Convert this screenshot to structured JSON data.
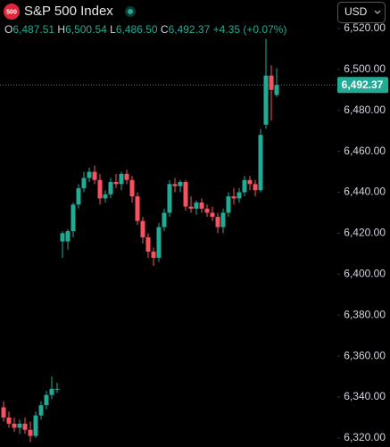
{
  "chart_data": {
    "type": "candlestick",
    "title": "S&P 500 Index",
    "badge": "500",
    "currency": "USD",
    "legend": [
      {
        "key": "O",
        "value": "6,487.51"
      },
      {
        "key": "H",
        "value": "6,500.54"
      },
      {
        "key": "L",
        "value": "6,486.50"
      },
      {
        "key": "C",
        "value": "6,492.37"
      }
    ],
    "change": "+4.35 (+0.07%)",
    "up_color": "#22ab94",
    "down_color": "#f7525f",
    "open": [
      6335,
      6330,
      6327,
      6325,
      6327,
      6324,
      6321,
      6331,
      6336,
      6341,
      6344,
      6416,
      6416,
      6421,
      6434,
      6442,
      6447,
      6450,
      6446,
      6437,
      6439,
      6445,
      6444,
      6449,
      6446,
      6438,
      6426,
      6418,
      6411,
      6408,
      6423,
      6430,
      6444,
      6443,
      6445,
      6433,
      6432,
      6435,
      6432,
      6430,
      6428,
      6423,
      6430,
      6438,
      6437,
      6440,
      6446,
      6444,
      6441,
      6473,
      6497,
      6487.51
    ],
    "high": [
      6338,
      6333,
      6330,
      6329,
      6330,
      6328,
      6333,
      6338,
      6343,
      6350,
      6347,
      6421,
      6422,
      6435,
      6444,
      6450,
      6452,
      6453,
      6449,
      6441,
      6447,
      6449,
      6450,
      6451,
      6448,
      6440,
      6428,
      6420,
      6413,
      6425,
      6432,
      6446,
      6447,
      6446,
      6446,
      6438,
      6436,
      6437,
      6434,
      6433,
      6430,
      6432,
      6440,
      6442,
      6442,
      6448,
      6448,
      6446,
      6471,
      6515,
      6502,
      6500.54
    ],
    "low": [
      6328,
      6325,
      6323,
      6322,
      6322,
      6318,
      6320,
      6329,
      6334,
      6339,
      6342,
      6408,
      6412,
      6418,
      6432,
      6440,
      6445,
      6444,
      6434,
      6435,
      6437,
      6442,
      6441,
      6444,
      6435,
      6424,
      6415,
      6408,
      6404,
      6406,
      6421,
      6428,
      6440,
      6440,
      6431,
      6430,
      6429,
      6430,
      6428,
      6426,
      6420,
      6420,
      6428,
      6434,
      6435,
      6438,
      6441,
      6438,
      6440,
      6471,
      6475,
      6486.5
    ],
    "close": [
      6330,
      6327,
      6325,
      6327,
      6324,
      6321,
      6331,
      6336,
      6341,
      6344,
      6344,
      6420,
      6421,
      6434,
      6442,
      6447,
      6450,
      6446,
      6437,
      6439,
      6445,
      6444,
      6449,
      6446,
      6438,
      6426,
      6418,
      6411,
      6408,
      6423,
      6430,
      6444,
      6443,
      6445,
      6433,
      6432,
      6435,
      6432,
      6430,
      6428,
      6423,
      6430,
      6438,
      6437,
      6440,
      6446,
      6444,
      6441,
      6468,
      6497,
      6490,
      6492.37
    ],
    "last_price": {
      "value": 6492.37,
      "label": "6,492.37"
    },
    "ylim": [
      6315.6,
      6533.9
    ],
    "yticks": [
      {
        "value": 6320,
        "label": "6,320.00"
      },
      {
        "value": 6340,
        "label": "6,340.00"
      },
      {
        "value": 6360,
        "label": "6,360.00"
      },
      {
        "value": 6380,
        "label": "6,380.00"
      },
      {
        "value": 6400,
        "label": "6,400.00"
      },
      {
        "value": 6420,
        "label": "6,420.00"
      },
      {
        "value": 6440,
        "label": "6,440.00"
      },
      {
        "value": 6460,
        "label": "6,460.00"
      },
      {
        "value": 6480,
        "label": "6,480.00"
      },
      {
        "value": 6500,
        "label": "6,500.00"
      },
      {
        "value": 6520,
        "label": "6,520.00"
      }
    ]
  }
}
